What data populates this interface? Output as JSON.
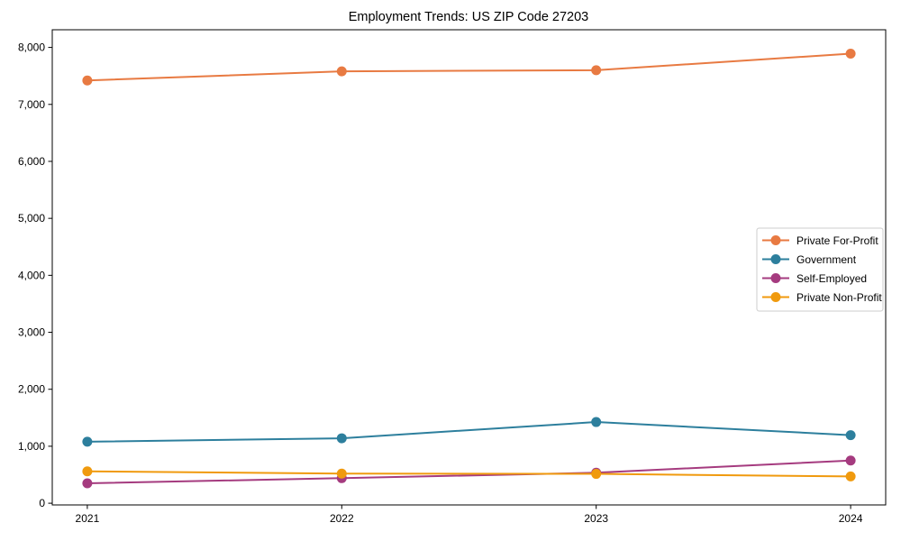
{
  "figure": {
    "title": "Employment Trends: US ZIP Code 27203"
  },
  "chart_data": {
    "type": "line",
    "title": "Employment Trends: US ZIP Code 27203",
    "xlabel": "",
    "ylabel": "",
    "categories": [
      "2021",
      "2022",
      "2023",
      "2024"
    ],
    "series": [
      {
        "name": "Private For-Profit",
        "color": "#e87a42",
        "values": [
          7420,
          7580,
          7600,
          7890
        ]
      },
      {
        "name": "Government",
        "color": "#2d7f9d",
        "values": [
          1080,
          1140,
          1425,
          1195
        ]
      },
      {
        "name": "Self-Employed",
        "color": "#a53b7f",
        "values": [
          350,
          440,
          535,
          750
        ]
      },
      {
        "name": "Private Non-Profit",
        "color": "#f09a0e",
        "values": [
          560,
          520,
          515,
          470
        ]
      }
    ],
    "ytick_values": [
      0,
      1000,
      2000,
      3000,
      4000,
      5000,
      6000,
      7000,
      8000
    ],
    "ytick_labels": [
      "0",
      "1,000",
      "2,000",
      "3,000",
      "4,000",
      "5,000",
      "6,000",
      "7,000",
      "8,000"
    ],
    "ylim": [
      0,
      8000
    ],
    "grid": false,
    "legend_position": "center-right",
    "axis_color": "#000000",
    "background_color": "#ffffff"
  }
}
